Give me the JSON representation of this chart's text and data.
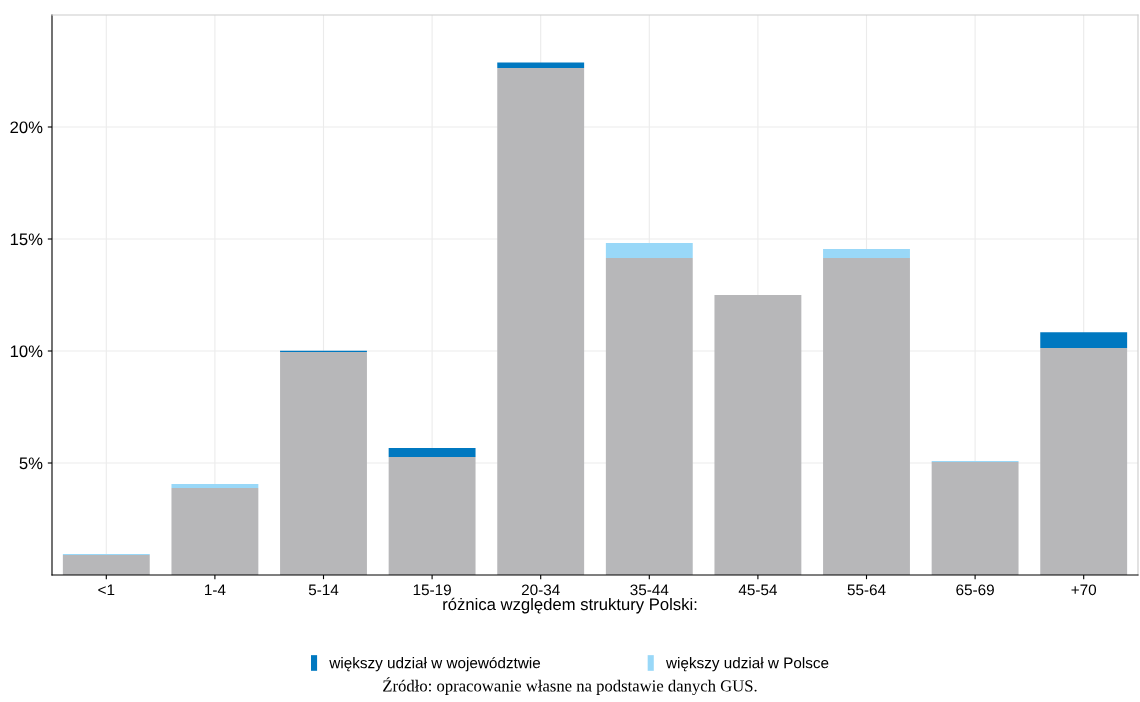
{
  "chart_data": {
    "type": "bar",
    "stacked": true,
    "categories": [
      "<1",
      "1-4",
      "5-14",
      "15-19",
      "20-34",
      "35-44",
      "45-54",
      "55-64",
      "65-69",
      "+70"
    ],
    "series": [
      {
        "color": "#b7b7b9",
        "values": [
          0.89,
          3.88,
          9.96,
          5.27,
          22.63,
          14.15,
          12.5,
          14.15,
          5.04,
          10.13
        ]
      },
      {
        "name": "większy udział w województwie",
        "color": "#0078c0",
        "values": [
          null,
          null,
          0.05,
          0.4,
          0.25,
          null,
          null,
          null,
          null,
          0.71
        ]
      },
      {
        "name": "większy udział w Polsce",
        "color": "#99d8f8",
        "values": [
          0.05,
          0.18,
          null,
          null,
          null,
          0.67,
          null,
          0.4,
          0.05,
          null
        ]
      }
    ],
    "ylim": [
      0,
      25
    ],
    "yticks": [
      {
        "value": 5,
        "label": "5%"
      },
      {
        "value": 10,
        "label": "10%"
      },
      {
        "value": 15,
        "label": "15%"
      },
      {
        "value": 20,
        "label": "20%"
      }
    ],
    "grid": true,
    "legend": "bottom",
    "legend_title": "różnica względem struktury Polski:",
    "annotations": [
      "Źródło: opracowanie własne na podstawie danych GUS."
    ]
  }
}
